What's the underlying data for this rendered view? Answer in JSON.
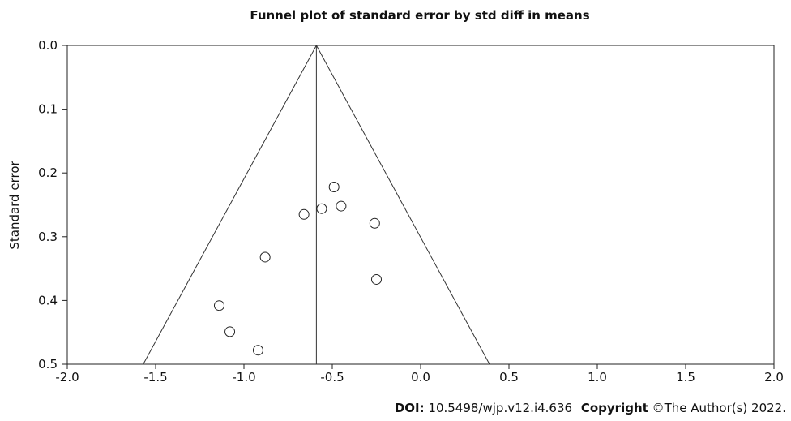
{
  "chart_data": {
    "type": "scatter",
    "title": "Funnel plot of standard error by std diff in means",
    "xlabel": "",
    "ylabel": "Standard error",
    "xlim": [
      -2.0,
      2.0
    ],
    "ylim": [
      0.0,
      0.5
    ],
    "y_inverted": true,
    "xticks": [
      "-2.0",
      "-1.5",
      "-1.0",
      "-0.5",
      "0.0",
      "0.5",
      "1.0",
      "1.5",
      "2.0"
    ],
    "yticks": [
      "0.0",
      "0.1",
      "0.2",
      "0.3",
      "0.4",
      "0.5"
    ],
    "pooled_effect": -0.59,
    "funnel": {
      "apex": [
        -0.59,
        0.0
      ],
      "left_base": [
        -1.57,
        0.5
      ],
      "right_base": [
        0.39,
        0.5
      ]
    },
    "points": [
      {
        "x": -0.49,
        "y": 0.222
      },
      {
        "x": -0.45,
        "y": 0.252
      },
      {
        "x": -0.56,
        "y": 0.256
      },
      {
        "x": -0.66,
        "y": 0.265
      },
      {
        "x": -0.26,
        "y": 0.279
      },
      {
        "x": -0.88,
        "y": 0.332
      },
      {
        "x": -0.25,
        "y": 0.367
      },
      {
        "x": -1.14,
        "y": 0.408
      },
      {
        "x": -1.08,
        "y": 0.449
      },
      {
        "x": -0.92,
        "y": 0.478
      }
    ],
    "grid": false,
    "legend": "none",
    "colors": {
      "line": "#333333",
      "marker_edge": "#222222",
      "marker_fill": "#ffffff",
      "frame": "#222222"
    }
  },
  "footer": {
    "doi_label": "DOI:",
    "doi_value": "10.5498/wjp.v12.i4.636",
    "copyright_label": "Copyright",
    "copyright_value": "©The Author(s) 2022."
  }
}
